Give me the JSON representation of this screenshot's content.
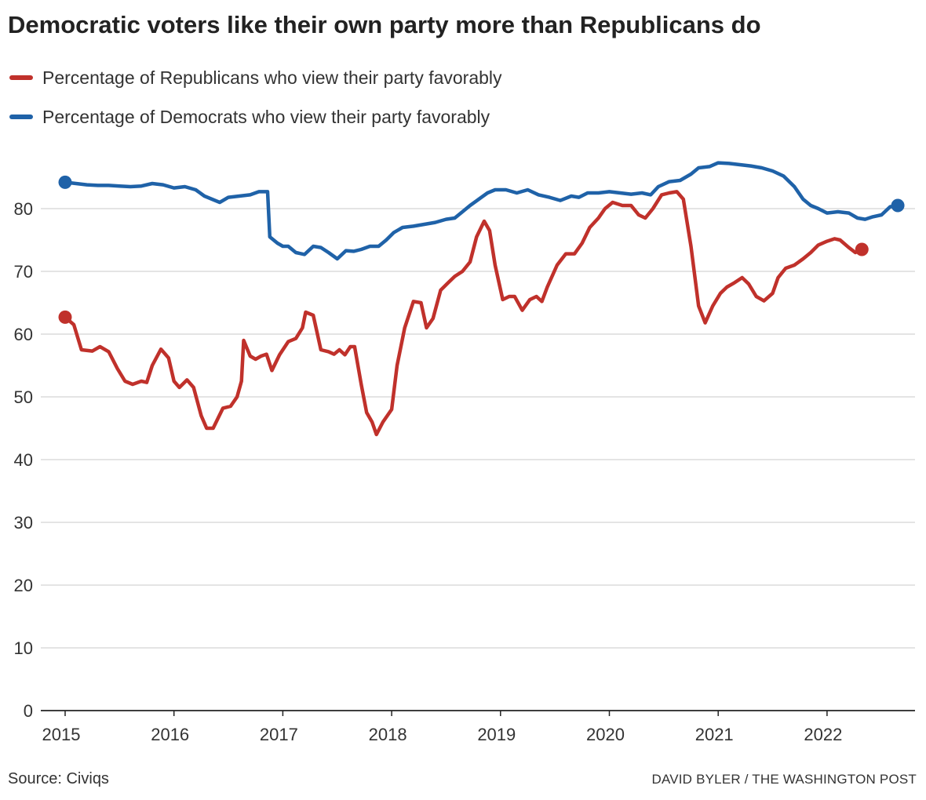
{
  "title": "Democratic voters like their own party more than Republicans do",
  "source": "Source: Civiqs",
  "credit": "DAVID BYLER / THE WASHINGTON POST",
  "chart_data": {
    "type": "line",
    "title": "Democratic voters like their own party more than Republicans do",
    "xlabel": "",
    "ylabel": "",
    "xlim": [
      2015.0,
      2023.0
    ],
    "ylim": [
      0,
      90
    ],
    "yticks": [
      0,
      10,
      20,
      30,
      40,
      50,
      60,
      70,
      80
    ],
    "xticks": [
      "2015",
      "2016",
      "2017",
      "2018",
      "2019",
      "2020",
      "2021",
      "2022"
    ],
    "grid": "horizontal",
    "legend_position": "top-left",
    "series": [
      {
        "name": "Percentage of Republicans who view their party favorably",
        "color": "#c0312b",
        "points": [
          [
            2015.0,
            62.7
          ],
          [
            2015.08,
            61.5
          ],
          [
            2015.15,
            57.5
          ],
          [
            2015.25,
            57.3
          ],
          [
            2015.32,
            58.0
          ],
          [
            2015.4,
            57.2
          ],
          [
            2015.48,
            54.5
          ],
          [
            2015.55,
            52.5
          ],
          [
            2015.62,
            52.0
          ],
          [
            2015.7,
            52.5
          ],
          [
            2015.75,
            52.3
          ],
          [
            2015.8,
            55.0
          ],
          [
            2015.88,
            57.6
          ],
          [
            2015.95,
            56.2
          ],
          [
            2016.0,
            52.5
          ],
          [
            2016.05,
            51.5
          ],
          [
            2016.12,
            52.7
          ],
          [
            2016.18,
            51.5
          ],
          [
            2016.25,
            47.0
          ],
          [
            2016.3,
            45.0
          ],
          [
            2016.36,
            45.0
          ],
          [
            2016.45,
            48.2
          ],
          [
            2016.52,
            48.5
          ],
          [
            2016.58,
            50.0
          ],
          [
            2016.62,
            52.5
          ],
          [
            2016.64,
            59.0
          ],
          [
            2016.7,
            56.5
          ],
          [
            2016.75,
            56.0
          ],
          [
            2016.8,
            56.5
          ],
          [
            2016.85,
            56.8
          ],
          [
            2016.9,
            54.2
          ],
          [
            2016.97,
            56.7
          ],
          [
            2017.05,
            58.8
          ],
          [
            2017.12,
            59.3
          ],
          [
            2017.18,
            61.0
          ],
          [
            2017.21,
            63.5
          ],
          [
            2017.28,
            63.0
          ],
          [
            2017.35,
            57.5
          ],
          [
            2017.42,
            57.2
          ],
          [
            2017.47,
            56.8
          ],
          [
            2017.52,
            57.5
          ],
          [
            2017.57,
            56.7
          ],
          [
            2017.62,
            58.0
          ],
          [
            2017.66,
            58.0
          ],
          [
            2017.72,
            52.0
          ],
          [
            2017.77,
            47.5
          ],
          [
            2017.82,
            46.0
          ],
          [
            2017.86,
            44.0
          ],
          [
            2017.92,
            46.0
          ],
          [
            2018.0,
            48.0
          ],
          [
            2018.05,
            55.0
          ],
          [
            2018.12,
            61.0
          ],
          [
            2018.2,
            65.2
          ],
          [
            2018.27,
            65.0
          ],
          [
            2018.32,
            61.0
          ],
          [
            2018.38,
            62.5
          ],
          [
            2018.45,
            67.0
          ],
          [
            2018.52,
            68.2
          ],
          [
            2018.58,
            69.2
          ],
          [
            2018.65,
            70.0
          ],
          [
            2018.72,
            71.5
          ],
          [
            2018.78,
            75.5
          ],
          [
            2018.85,
            78.0
          ],
          [
            2018.9,
            76.5
          ],
          [
            2018.95,
            71.0
          ],
          [
            2019.02,
            65.5
          ],
          [
            2019.08,
            66.0
          ],
          [
            2019.13,
            66.0
          ],
          [
            2019.2,
            63.8
          ],
          [
            2019.27,
            65.5
          ],
          [
            2019.33,
            66.0
          ],
          [
            2019.38,
            65.2
          ],
          [
            2019.43,
            67.5
          ],
          [
            2019.52,
            71.0
          ],
          [
            2019.6,
            72.8
          ],
          [
            2019.68,
            72.8
          ],
          [
            2019.75,
            74.5
          ],
          [
            2019.82,
            77.0
          ],
          [
            2019.9,
            78.5
          ],
          [
            2019.96,
            80.0
          ],
          [
            2020.03,
            81.0
          ],
          [
            2020.12,
            80.5
          ],
          [
            2020.2,
            80.5
          ],
          [
            2020.27,
            79.0
          ],
          [
            2020.33,
            78.5
          ],
          [
            2020.4,
            80.0
          ],
          [
            2020.48,
            82.2
          ],
          [
            2020.55,
            82.5
          ],
          [
            2020.62,
            82.7
          ],
          [
            2020.68,
            81.5
          ],
          [
            2020.75,
            74.0
          ],
          [
            2020.82,
            64.5
          ],
          [
            2020.88,
            61.8
          ],
          [
            2020.95,
            64.5
          ],
          [
            2021.02,
            66.5
          ],
          [
            2021.08,
            67.5
          ],
          [
            2021.15,
            68.2
          ],
          [
            2021.22,
            69.0
          ],
          [
            2021.28,
            68.0
          ],
          [
            2021.35,
            66.0
          ],
          [
            2021.42,
            65.3
          ],
          [
            2021.5,
            66.5
          ],
          [
            2021.55,
            69.0
          ],
          [
            2021.62,
            70.5
          ],
          [
            2021.7,
            71.0
          ],
          [
            2021.78,
            72.0
          ],
          [
            2021.85,
            73.0
          ],
          [
            2021.92,
            74.2
          ],
          [
            2022.0,
            74.8
          ],
          [
            2022.07,
            75.2
          ],
          [
            2022.12,
            75.0
          ],
          [
            2022.2,
            73.8
          ],
          [
            2022.26,
            73.0
          ],
          [
            2022.32,
            73.5
          ]
        ]
      },
      {
        "name": "Percentage of Democrats who view their party favorably",
        "color": "#1f62a8",
        "points": [
          [
            2015.0,
            84.2
          ],
          [
            2015.1,
            84.0
          ],
          [
            2015.2,
            83.8
          ],
          [
            2015.3,
            83.7
          ],
          [
            2015.4,
            83.7
          ],
          [
            2015.5,
            83.6
          ],
          [
            2015.6,
            83.5
          ],
          [
            2015.7,
            83.6
          ],
          [
            2015.8,
            84.0
          ],
          [
            2015.9,
            83.8
          ],
          [
            2016.0,
            83.3
          ],
          [
            2016.1,
            83.5
          ],
          [
            2016.2,
            83.0
          ],
          [
            2016.28,
            82.0
          ],
          [
            2016.35,
            81.5
          ],
          [
            2016.42,
            81.0
          ],
          [
            2016.5,
            81.8
          ],
          [
            2016.6,
            82.0
          ],
          [
            2016.7,
            82.2
          ],
          [
            2016.78,
            82.7
          ],
          [
            2016.86,
            82.7
          ],
          [
            2016.88,
            75.5
          ],
          [
            2016.95,
            74.5
          ],
          [
            2017.0,
            74.0
          ],
          [
            2017.05,
            74.0
          ],
          [
            2017.12,
            73.0
          ],
          [
            2017.2,
            72.7
          ],
          [
            2017.28,
            74.0
          ],
          [
            2017.35,
            73.8
          ],
          [
            2017.42,
            73.0
          ],
          [
            2017.5,
            72.0
          ],
          [
            2017.58,
            73.3
          ],
          [
            2017.65,
            73.2
          ],
          [
            2017.72,
            73.5
          ],
          [
            2017.8,
            74.0
          ],
          [
            2017.88,
            74.0
          ],
          [
            2017.95,
            75.0
          ],
          [
            2018.02,
            76.2
          ],
          [
            2018.1,
            77.0
          ],
          [
            2018.2,
            77.2
          ],
          [
            2018.3,
            77.5
          ],
          [
            2018.4,
            77.8
          ],
          [
            2018.5,
            78.3
          ],
          [
            2018.58,
            78.5
          ],
          [
            2018.65,
            79.5
          ],
          [
            2018.72,
            80.5
          ],
          [
            2018.8,
            81.5
          ],
          [
            2018.88,
            82.5
          ],
          [
            2018.95,
            83.0
          ],
          [
            2019.05,
            83.0
          ],
          [
            2019.15,
            82.5
          ],
          [
            2019.25,
            83.0
          ],
          [
            2019.35,
            82.2
          ],
          [
            2019.45,
            81.8
          ],
          [
            2019.55,
            81.3
          ],
          [
            2019.65,
            82.0
          ],
          [
            2019.72,
            81.8
          ],
          [
            2019.8,
            82.5
          ],
          [
            2019.9,
            82.5
          ],
          [
            2020.0,
            82.7
          ],
          [
            2020.1,
            82.5
          ],
          [
            2020.2,
            82.3
          ],
          [
            2020.3,
            82.5
          ],
          [
            2020.38,
            82.2
          ],
          [
            2020.45,
            83.5
          ],
          [
            2020.55,
            84.3
          ],
          [
            2020.65,
            84.5
          ],
          [
            2020.75,
            85.5
          ],
          [
            2020.82,
            86.5
          ],
          [
            2020.92,
            86.7
          ],
          [
            2021.0,
            87.3
          ],
          [
            2021.1,
            87.2
          ],
          [
            2021.2,
            87.0
          ],
          [
            2021.3,
            86.8
          ],
          [
            2021.4,
            86.5
          ],
          [
            2021.5,
            86.0
          ],
          [
            2021.6,
            85.2
          ],
          [
            2021.7,
            83.5
          ],
          [
            2021.78,
            81.5
          ],
          [
            2021.85,
            80.5
          ],
          [
            2021.92,
            80.0
          ],
          [
            2022.0,
            79.3
          ],
          [
            2022.1,
            79.5
          ],
          [
            2022.2,
            79.3
          ],
          [
            2022.28,
            78.5
          ],
          [
            2022.35,
            78.3
          ],
          [
            2022.42,
            78.7
          ],
          [
            2022.5,
            79.0
          ],
          [
            2022.58,
            80.3
          ],
          [
            2022.65,
            80.5
          ]
        ]
      }
    ]
  }
}
